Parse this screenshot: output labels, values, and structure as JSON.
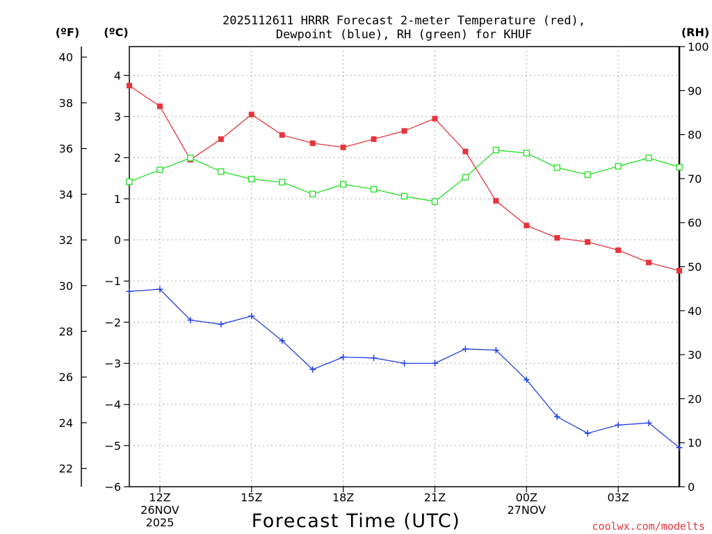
{
  "chart_data": {
    "type": "line",
    "title_line1": "2025112611 HRRR Forecast 2-meter Temperature (red),",
    "title_line2": "Dewpoint (blue), RH (green) for KHUF",
    "xlabel": "Forecast Time (UTC)",
    "credit": "coolwx.com/modelts",
    "left_outer_axis_label": "(ºF)",
    "left_inner_axis_label": "(ºC)",
    "right_axis_label": "(RH)",
    "x_hours": [
      11,
      12,
      13,
      14,
      15,
      16,
      17,
      18,
      19,
      20,
      21,
      22,
      23,
      24,
      25,
      26,
      27,
      28,
      29
    ],
    "x_ticks": [
      {
        "hour": 12,
        "lines": [
          "12Z",
          "26NOV",
          "2025"
        ]
      },
      {
        "hour": 15,
        "lines": [
          "15Z"
        ]
      },
      {
        "hour": 18,
        "lines": [
          "18Z"
        ]
      },
      {
        "hour": 21,
        "lines": [
          "21Z"
        ]
      },
      {
        "hour": 24,
        "lines": [
          "00Z",
          "27NOV"
        ]
      },
      {
        "hour": 27,
        "lines": [
          "03Z"
        ]
      }
    ],
    "celsius_ticks": [
      -6,
      -5,
      -4,
      -3,
      -2,
      -1,
      0,
      1,
      2,
      3,
      4
    ],
    "fahrenheit_ticks": [
      22,
      24,
      26,
      28,
      30,
      32,
      34,
      36,
      38,
      40
    ],
    "rh_ticks": [
      0,
      10,
      20,
      30,
      40,
      50,
      60,
      70,
      80,
      90,
      100
    ],
    "celsius_range": [
      -6,
      4.7
    ],
    "rh_range": [
      0,
      100
    ],
    "series": [
      {
        "name": "Temperature",
        "units": "C",
        "color": "#e8343c",
        "marker": "filled-square",
        "values": [
          3.75,
          3.25,
          1.95,
          2.45,
          3.05,
          2.55,
          2.35,
          2.25,
          2.45,
          2.65,
          2.95,
          2.15,
          0.95,
          0.35,
          0.05,
          -0.05,
          -0.25,
          -0.55,
          -0.75
        ]
      },
      {
        "name": "Dewpoint",
        "units": "C",
        "color": "#1f3fe0",
        "marker": "plus",
        "values": [
          -1.25,
          -1.2,
          -1.95,
          -2.05,
          -1.85,
          -2.45,
          -3.15,
          -2.85,
          -2.87,
          -3.0,
          -3.0,
          -2.65,
          -2.68,
          -3.4,
          -4.3,
          -4.7,
          -4.5,
          -4.45,
          -5.05
        ]
      },
      {
        "name": "RH",
        "units": "%",
        "color": "#1ee01e",
        "marker": "open-square",
        "values": [
          69.3,
          72,
          74.7,
          71.6,
          69.9,
          69.2,
          66.5,
          68.7,
          67.6,
          66,
          64.8,
          70.3,
          76.5,
          75.8,
          72.5,
          70.9,
          72.8,
          74.7,
          72.6
        ]
      }
    ]
  }
}
